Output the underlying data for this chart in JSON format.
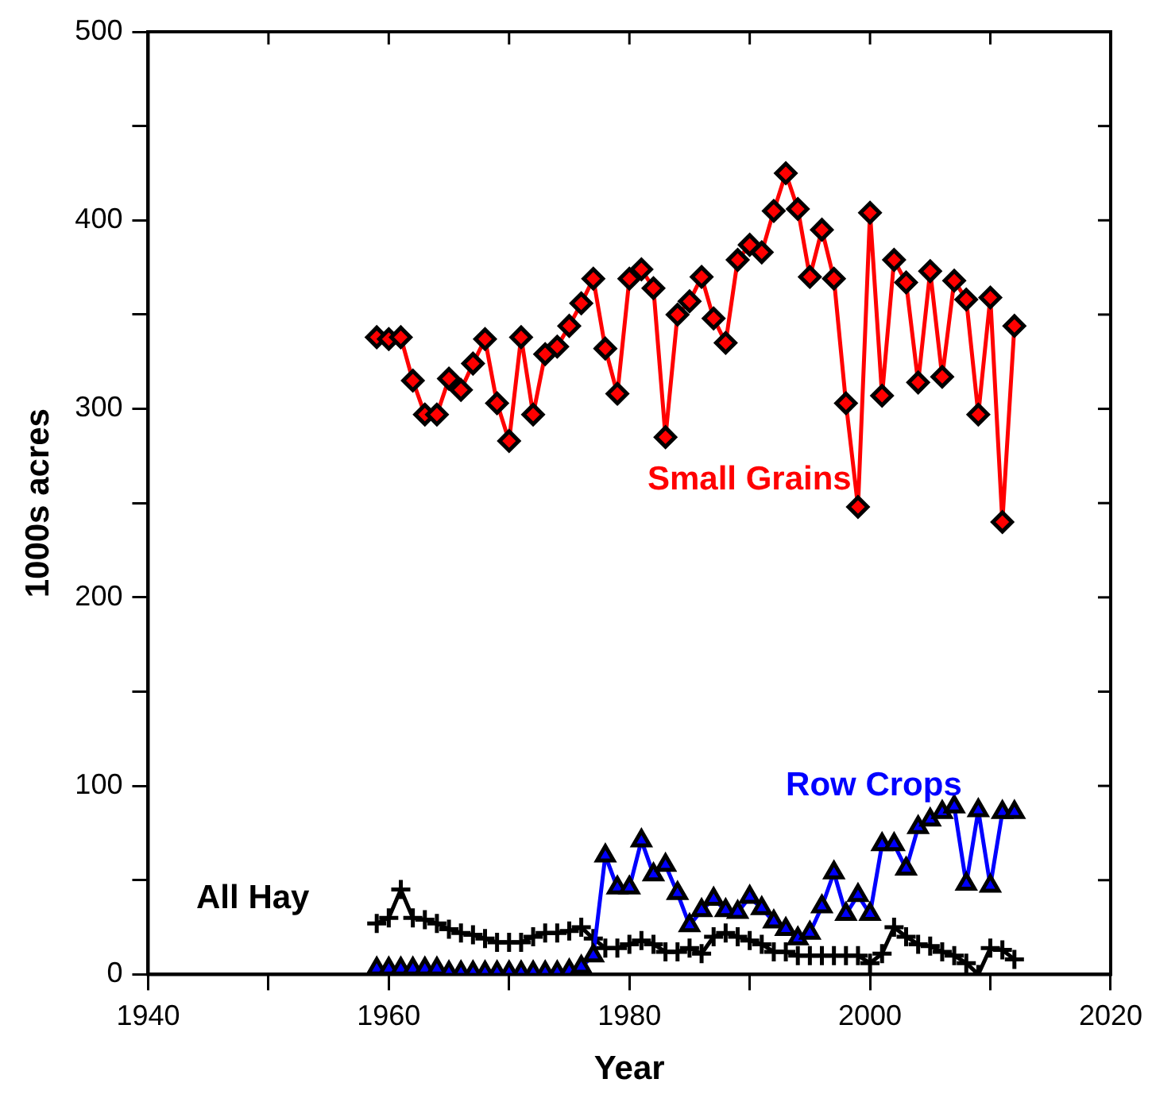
{
  "chart_data": {
    "type": "line",
    "xlabel": "Year",
    "ylabel": "1000s acres",
    "xlim": [
      1940,
      2020
    ],
    "xticks": [
      1940,
      {
        "value": 1950,
        "label": null
      },
      1960,
      {
        "value": 1970,
        "label": null
      },
      1980,
      {
        "value": 1990,
        "label": null
      },
      2000,
      {
        "value": 2010,
        "label": null
      },
      2020
    ],
    "ylim": [
      0,
      500
    ],
    "yticks": [
      0,
      {
        "value": 50,
        "label": null
      },
      100,
      {
        "value": 150,
        "label": null
      },
      200,
      {
        "value": 250,
        "label": null
      },
      300,
      {
        "value": 350,
        "label": null
      },
      400,
      {
        "value": 450,
        "label": null
      },
      500
    ],
    "grid": false,
    "legend": false,
    "x": [
      1959,
      1960,
      1961,
      1962,
      1963,
      1964,
      1965,
      1966,
      1967,
      1968,
      1969,
      1970,
      1971,
      1972,
      1973,
      1974,
      1975,
      1976,
      1977,
      1978,
      1979,
      1980,
      1981,
      1982,
      1983,
      1984,
      1985,
      1986,
      1987,
      1988,
      1989,
      1990,
      1991,
      1992,
      1993,
      1994,
      1995,
      1996,
      1997,
      1998,
      1999,
      2000,
      2001,
      2002,
      2003,
      2004,
      2005,
      2006,
      2007,
      2008,
      2009,
      2010,
      2011,
      2012
    ],
    "series": [
      {
        "name": "Small Grains",
        "color": "#ff0000",
        "marker": "diamond",
        "values": [
          338,
          337,
          338,
          315,
          297,
          297,
          316,
          310,
          324,
          337,
          303,
          283,
          338,
          297,
          329,
          333,
          344,
          356,
          369,
          332,
          308,
          369,
          374,
          364,
          285,
          350,
          357,
          370,
          348,
          335,
          379,
          387,
          383,
          405,
          425,
          406,
          370,
          395,
          369,
          303,
          248,
          404,
          307,
          379,
          367,
          314,
          373,
          317,
          368,
          358,
          297,
          359,
          240,
          344
        ]
      },
      {
        "name": "Row Crops",
        "color": "#0000ff",
        "marker": "triangle",
        "values": [
          3,
          3,
          3,
          3,
          3,
          3,
          1,
          1,
          1,
          1,
          1,
          1,
          1,
          1,
          1,
          1,
          2,
          4,
          10,
          63,
          46,
          46,
          71,
          53,
          58,
          43,
          26,
          34,
          40,
          34,
          33,
          41,
          35,
          28,
          24,
          19,
          22,
          36,
          54,
          32,
          42,
          32,
          69,
          69,
          56,
          78,
          82,
          86,
          89,
          48,
          87,
          47,
          86,
          86
        ]
      },
      {
        "name": "All Hay",
        "color": "#000000",
        "marker": "cross",
        "values": [
          27,
          30,
          45,
          30,
          29,
          27,
          24,
          22,
          21,
          19,
          17,
          17,
          17,
          20,
          22,
          22,
          23,
          25,
          19,
          14,
          14,
          16,
          18,
          16,
          12,
          12,
          14,
          11,
          20,
          22,
          20,
          18,
          16,
          12,
          12,
          10,
          10,
          10,
          10,
          10,
          10,
          6,
          11,
          25,
          20,
          16,
          15,
          12,
          10,
          6,
          0,
          14,
          13,
          8
        ]
      }
    ]
  }
}
